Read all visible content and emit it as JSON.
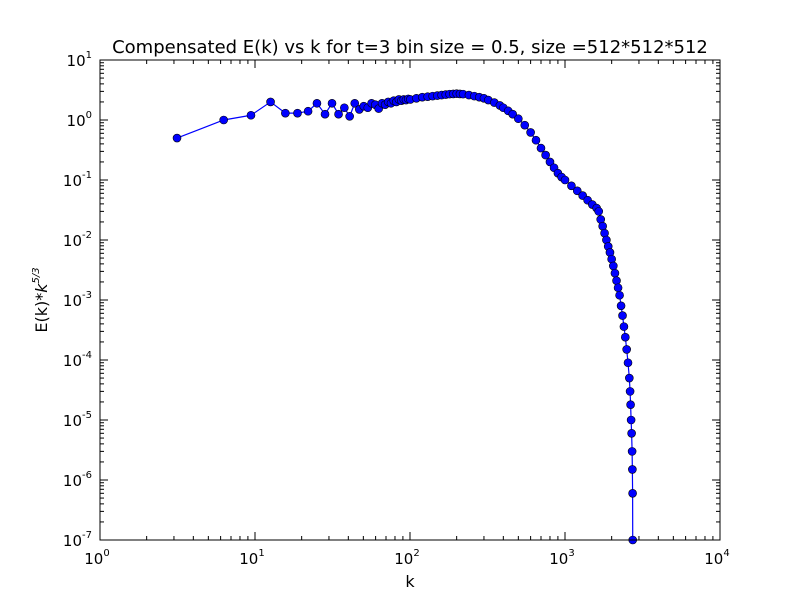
{
  "chart_data": {
    "type": "line",
    "title": "Compensated E(k) vs k for t=3 bin size = 0.5, size =512*512*512",
    "xlabel": "k",
    "ylabel_main": "E(k)*",
    "ylabel_k": "k",
    "ylabel_exp": "5/3",
    "xscale": "log",
    "yscale": "log",
    "xlim": [
      1,
      10000
    ],
    "ylim": [
      1e-07,
      10
    ],
    "grid": false,
    "legend": "none",
    "x_ticks": [
      {
        "value": 1,
        "base": "10",
        "exp": "0"
      },
      {
        "value": 10,
        "base": "10",
        "exp": "1"
      },
      {
        "value": 100,
        "base": "10",
        "exp": "2"
      },
      {
        "value": 1000,
        "base": "10",
        "exp": "3"
      },
      {
        "value": 10000,
        "base": "10",
        "exp": "4"
      }
    ],
    "y_ticks": [
      {
        "value": 1e-07,
        "base": "10",
        "exp": "-7"
      },
      {
        "value": 1e-06,
        "base": "10",
        "exp": "-6"
      },
      {
        "value": 1e-05,
        "base": "10",
        "exp": "-5"
      },
      {
        "value": 0.0001,
        "base": "10",
        "exp": "-4"
      },
      {
        "value": 0.001,
        "base": "10",
        "exp": "-3"
      },
      {
        "value": 0.01,
        "base": "10",
        "exp": "-2"
      },
      {
        "value": 0.1,
        "base": "10",
        "exp": "-1"
      },
      {
        "value": 1,
        "base": "10",
        "exp": "0"
      },
      {
        "value": 10,
        "base": "10",
        "exp": "1"
      }
    ],
    "series": [
      {
        "color": "#0000ff",
        "marker": "circle",
        "points": [
          [
            3.14,
            0.5
          ],
          [
            6.28,
            1.0
          ],
          [
            9.42,
            1.2
          ],
          [
            12.6,
            2.0
          ],
          [
            15.7,
            1.3
          ],
          [
            18.8,
            1.3
          ],
          [
            22.0,
            1.4
          ],
          [
            25.1,
            1.9
          ],
          [
            28.3,
            1.25
          ],
          [
            31.4,
            1.9
          ],
          [
            34.6,
            1.25
          ],
          [
            37.7,
            1.6
          ],
          [
            40.8,
            1.15
          ],
          [
            44.0,
            1.9
          ],
          [
            47.1,
            1.5
          ],
          [
            50.3,
            1.7
          ],
          [
            53.4,
            1.6
          ],
          [
            56.5,
            1.9
          ],
          [
            59.7,
            1.8
          ],
          [
            62.8,
            1.55
          ],
          [
            66.0,
            1.9
          ],
          [
            69.1,
            1.8
          ],
          [
            72.3,
            2.0
          ],
          [
            75.4,
            1.9
          ],
          [
            78.5,
            2.1
          ],
          [
            81.7,
            2.0
          ],
          [
            84.8,
            2.2
          ],
          [
            88.0,
            2.1
          ],
          [
            91.1,
            2.2
          ],
          [
            94.2,
            2.15
          ],
          [
            97.4,
            2.25
          ],
          [
            100.5,
            2.2
          ],
          [
            110,
            2.3
          ],
          [
            120,
            2.4
          ],
          [
            130,
            2.45
          ],
          [
            140,
            2.5
          ],
          [
            150,
            2.55
          ],
          [
            160,
            2.6
          ],
          [
            170,
            2.65
          ],
          [
            180,
            2.7
          ],
          [
            190,
            2.72
          ],
          [
            200,
            2.75
          ],
          [
            210,
            2.72
          ],
          [
            220,
            2.7
          ],
          [
            240,
            2.6
          ],
          [
            260,
            2.5
          ],
          [
            280,
            2.4
          ],
          [
            300,
            2.3
          ],
          [
            320,
            2.15
          ],
          [
            350,
            1.95
          ],
          [
            380,
            1.75
          ],
          [
            400,
            1.6
          ],
          [
            430,
            1.42
          ],
          [
            460,
            1.25
          ],
          [
            500,
            1.05
          ],
          [
            550,
            0.82
          ],
          [
            600,
            0.62
          ],
          [
            650,
            0.46
          ],
          [
            700,
            0.34
          ],
          [
            750,
            0.26
          ],
          [
            800,
            0.2
          ],
          [
            850,
            0.16
          ],
          [
            900,
            0.13
          ],
          [
            950,
            0.112
          ],
          [
            1000,
            0.1
          ],
          [
            1100,
            0.08
          ],
          [
            1200,
            0.066
          ],
          [
            1300,
            0.055
          ],
          [
            1400,
            0.046
          ],
          [
            1500,
            0.039
          ],
          [
            1600,
            0.034
          ],
          [
            1650,
            0.03
          ],
          [
            1700,
            0.022
          ],
          [
            1750,
            0.017
          ],
          [
            1800,
            0.013
          ],
          [
            1850,
            0.01
          ],
          [
            1900,
            0.0078
          ],
          [
            1950,
            0.0062
          ],
          [
            2000,
            0.0048
          ],
          [
            2050,
            0.0037
          ],
          [
            2100,
            0.0028
          ],
          [
            2150,
            0.0021
          ],
          [
            2200,
            0.0016
          ],
          [
            2250,
            0.0012
          ],
          [
            2300,
            0.0008
          ],
          [
            2350,
            0.00055
          ],
          [
            2400,
            0.00036
          ],
          [
            2450,
            0.00024
          ],
          [
            2500,
            0.00015
          ],
          [
            2550,
            9e-05
          ],
          [
            2600,
            5e-05
          ],
          [
            2630,
            3e-05
          ],
          [
            2650,
            1.8e-05
          ],
          [
            2670,
            1e-05
          ],
          [
            2690,
            6e-06
          ],
          [
            2710,
            3e-06
          ],
          [
            2720,
            1.5e-06
          ],
          [
            2730,
            6e-07
          ],
          [
            2735,
            1e-07
          ]
        ]
      }
    ]
  }
}
